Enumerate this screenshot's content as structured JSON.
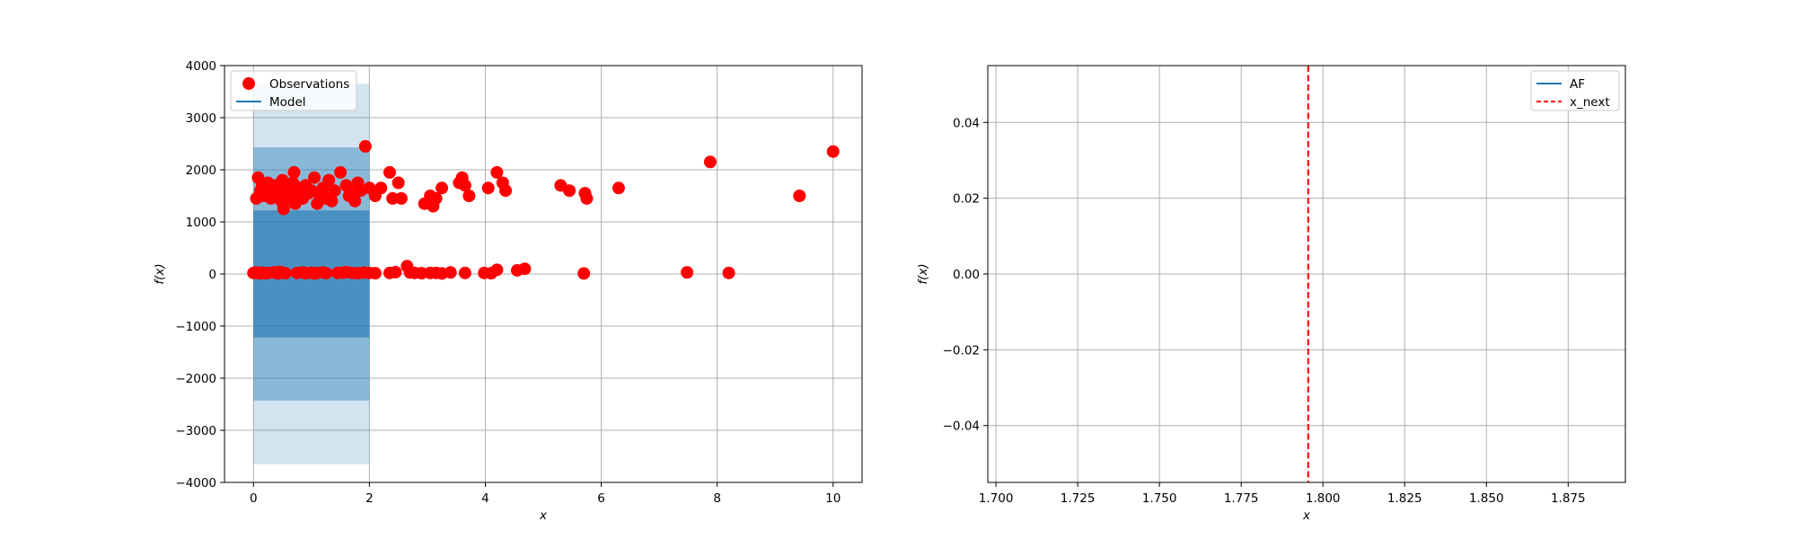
{
  "chart_data": [
    {
      "type": "scatter",
      "title": "",
      "xlabel": "x",
      "ylabel": "f(x)",
      "xlim": [
        -0.5,
        10.5
      ],
      "ylim": [
        -4000,
        4000
      ],
      "xticks": [
        0,
        2,
        4,
        6,
        8,
        10
      ],
      "yticks": [
        -4000,
        -3000,
        -2000,
        -1000,
        0,
        1000,
        2000,
        3000,
        4000
      ],
      "x_tick_labels": [
        "0",
        "2",
        "4",
        "6",
        "8",
        "10"
      ],
      "y_tick_labels": [
        "−4000",
        "−3000",
        "−2000",
        "−1000",
        "0",
        "1000",
        "2000",
        "3000",
        "4000"
      ],
      "grid": true,
      "legend": {
        "placement": "top-left",
        "entries": [
          "Observations",
          "Model"
        ]
      },
      "colors": {
        "observations": "#ff0000",
        "model": "#1f77b4"
      },
      "confidence_bands": [
        {
          "x_range": [
            0,
            2
          ],
          "y_range": [
            -3650,
            3650
          ],
          "opacity": 0.2
        },
        {
          "x_range": [
            0,
            2
          ],
          "y_range": [
            -2430,
            2430
          ],
          "opacity": 0.4
        },
        {
          "x_range": [
            0,
            2
          ],
          "y_range": [
            -1220,
            1220
          ],
          "opacity": 0.6
        }
      ],
      "series": [
        {
          "name": "Observations",
          "points": [
            [
              0.05,
              1450
            ],
            [
              0.08,
              1850
            ],
            [
              0.12,
              1600
            ],
            [
              0.15,
              1700
            ],
            [
              0.18,
              1500
            ],
            [
              0.2,
              1650
            ],
            [
              0.25,
              1750
            ],
            [
              0.28,
              1550
            ],
            [
              0.3,
              1450
            ],
            [
              0.33,
              1600
            ],
            [
              0.38,
              1700
            ],
            [
              0.42,
              1500
            ],
            [
              0.45,
              1650
            ],
            [
              0.48,
              1400
            ],
            [
              0.5,
              1800
            ],
            [
              0.52,
              1250
            ],
            [
              0.55,
              1550
            ],
            [
              0.58,
              1700
            ],
            [
              0.6,
              1450
            ],
            [
              0.63,
              1600
            ],
            [
              0.68,
              1750
            ],
            [
              0.7,
              1950
            ],
            [
              0.72,
              1350
            ],
            [
              0.75,
              1500
            ],
            [
              0.8,
              1650
            ],
            [
              0.85,
              1450
            ],
            [
              0.9,
              1700
            ],
            [
              0.95,
              1550
            ],
            [
              1.0,
              1600
            ],
            [
              1.05,
              1850
            ],
            [
              1.1,
              1350
            ],
            [
              1.15,
              1500
            ],
            [
              1.2,
              1650
            ],
            [
              1.25,
              1450
            ],
            [
              1.3,
              1800
            ],
            [
              1.35,
              1400
            ],
            [
              1.4,
              1600
            ],
            [
              1.5,
              1950
            ],
            [
              1.6,
              1700
            ],
            [
              1.65,
              1500
            ],
            [
              1.7,
              1550
            ],
            [
              1.75,
              1400
            ],
            [
              1.8,
              1750
            ],
            [
              1.85,
              1600
            ],
            [
              1.93,
              2450
            ],
            [
              2.0,
              1650
            ],
            [
              2.1,
              1500
            ],
            [
              2.2,
              1650
            ],
            [
              2.35,
              1950
            ],
            [
              2.4,
              1450
            ],
            [
              2.5,
              1750
            ],
            [
              2.55,
              1450
            ],
            [
              2.95,
              1350
            ],
            [
              3.05,
              1500
            ],
            [
              3.1,
              1300
            ],
            [
              3.15,
              1450
            ],
            [
              3.25,
              1650
            ],
            [
              3.55,
              1750
            ],
            [
              3.6,
              1850
            ],
            [
              3.65,
              1700
            ],
            [
              3.72,
              1500
            ],
            [
              4.05,
              1650
            ],
            [
              4.2,
              1950
            ],
            [
              4.3,
              1750
            ],
            [
              4.35,
              1600
            ],
            [
              5.3,
              1700
            ],
            [
              5.45,
              1600
            ],
            [
              5.72,
              1550
            ],
            [
              5.75,
              1450
            ],
            [
              6.3,
              1650
            ],
            [
              7.88,
              2150
            ],
            [
              9.42,
              1500
            ],
            [
              10.0,
              2350
            ],
            [
              0.0,
              20
            ],
            [
              0.05,
              30
            ],
            [
              0.1,
              10
            ],
            [
              0.15,
              25
            ],
            [
              0.2,
              15
            ],
            [
              0.25,
              20
            ],
            [
              0.35,
              30
            ],
            [
              0.42,
              10
            ],
            [
              0.45,
              40
            ],
            [
              0.5,
              25
            ],
            [
              0.55,
              15
            ],
            [
              0.75,
              20
            ],
            [
              0.85,
              30
            ],
            [
              0.9,
              15
            ],
            [
              1.0,
              25
            ],
            [
              1.05,
              10
            ],
            [
              1.1,
              20
            ],
            [
              1.2,
              30
            ],
            [
              1.25,
              15
            ],
            [
              1.45,
              20
            ],
            [
              1.55,
              25
            ],
            [
              1.6,
              35
            ],
            [
              1.7,
              20
            ],
            [
              1.8,
              15
            ],
            [
              1.9,
              25
            ],
            [
              2.0,
              20
            ],
            [
              2.1,
              15
            ],
            [
              2.35,
              20
            ],
            [
              2.45,
              35
            ],
            [
              2.65,
              150
            ],
            [
              2.7,
              30
            ],
            [
              2.78,
              20
            ],
            [
              2.9,
              15
            ],
            [
              3.05,
              20
            ],
            [
              3.15,
              20
            ],
            [
              3.25,
              10
            ],
            [
              3.4,
              30
            ],
            [
              3.65,
              20
            ],
            [
              3.98,
              20
            ],
            [
              4.1,
              15
            ],
            [
              4.2,
              80
            ],
            [
              4.55,
              70
            ],
            [
              4.68,
              100
            ],
            [
              5.7,
              10
            ],
            [
              7.48,
              30
            ],
            [
              8.2,
              20
            ]
          ]
        },
        {
          "name": "Model",
          "x_range": [
            0,
            2
          ],
          "y_value": 0
        }
      ]
    },
    {
      "type": "line",
      "title": "",
      "xlabel": "x",
      "ylabel": "f(x)",
      "xlim": [
        1.6975,
        1.8925
      ],
      "ylim": [
        -0.055,
        0.055
      ],
      "xticks": [
        1.7,
        1.725,
        1.75,
        1.775,
        1.8,
        1.825,
        1.85,
        1.875
      ],
      "yticks": [
        -0.04,
        -0.02,
        0.0,
        0.02,
        0.04
      ],
      "x_tick_labels": [
        "1.700",
        "1.725",
        "1.750",
        "1.775",
        "1.800",
        "1.825",
        "1.850",
        "1.875"
      ],
      "y_tick_labels": [
        "−0.04",
        "−0.02",
        "0.00",
        "0.02",
        "0.04"
      ],
      "grid": true,
      "legend": {
        "placement": "top-right",
        "entries": [
          "AF",
          "x_next"
        ]
      },
      "colors": {
        "af": "#1f77b4",
        "x_next": "#ff0000"
      },
      "series": [
        {
          "name": "AF",
          "points": []
        },
        {
          "name": "x_next",
          "x_value": 1.7955
        }
      ]
    }
  ]
}
